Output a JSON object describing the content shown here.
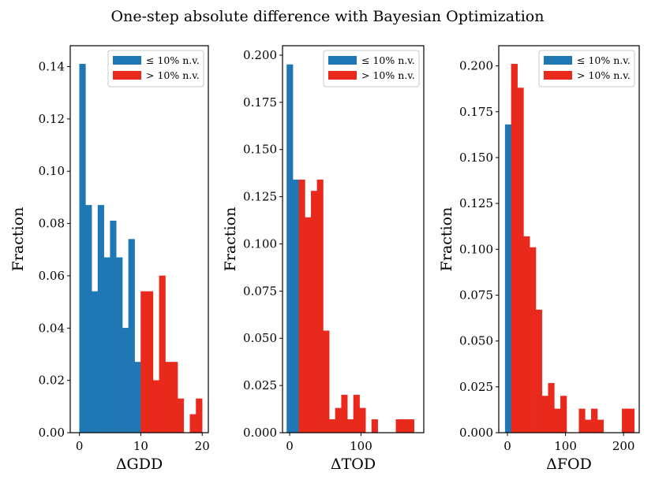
{
  "figure_title": "One-step absolute difference with Bayesian Optimization",
  "colors": {
    "below": "#1f77b4",
    "above": "#e8291c"
  },
  "chart_data": [
    {
      "type": "bar",
      "xlabel": "ΔGDD",
      "ylabel": "Fraction",
      "xlim": [
        -1.5,
        21
      ],
      "ylim": [
        0,
        0.148
      ],
      "xticks": [
        0,
        10,
        20
      ],
      "yticks": [
        "0.00",
        "0.02",
        "0.04",
        "0.06",
        "0.08",
        "0.10",
        "0.12",
        "0.14"
      ],
      "legend": {
        "position": "top-right",
        "entries": [
          "≤ 10% n.v.",
          "> 10% n.v."
        ]
      },
      "series": [
        {
          "name": "≤ 10% n.v.",
          "bin_width": 1,
          "bins": [
            [
              0,
              0.141
            ],
            [
              1,
              0.087
            ],
            [
              2,
              0.054
            ],
            [
              3,
              0.087
            ],
            [
              4,
              0.067
            ],
            [
              5,
              0.081
            ],
            [
              6,
              0.067
            ],
            [
              7,
              0.04
            ],
            [
              8,
              0.074
            ],
            [
              9,
              0.027
            ]
          ]
        },
        {
          "name": "> 10% n.v.",
          "bin_width": 1,
          "bins": [
            [
              10,
              0.054
            ],
            [
              11,
              0.054
            ],
            [
              12,
              0.02
            ],
            [
              13,
              0.06
            ],
            [
              14,
              0.027
            ],
            [
              15,
              0.027
            ],
            [
              16,
              0.013
            ],
            [
              17,
              0.0
            ],
            [
              18,
              0.007
            ],
            [
              19,
              0.013
            ]
          ]
        }
      ]
    },
    {
      "type": "bar",
      "xlabel": "ΔTOD",
      "ylabel": "Fraction",
      "xlim": [
        -10,
        188
      ],
      "ylim": [
        0,
        0.205
      ],
      "xticks": [
        0,
        100
      ],
      "yticks": [
        "0.000",
        "0.025",
        "0.050",
        "0.075",
        "0.100",
        "0.125",
        "0.150",
        "0.175",
        "0.200"
      ],
      "legend": {
        "position": "top-right",
        "entries": [
          "≤ 10% n.v.",
          "> 10% n.v."
        ]
      },
      "series": [
        {
          "name": "≤ 10% n.v.",
          "bin_width": 8.5,
          "bins": [
            [
              -4,
              0.195
            ],
            [
              4.5,
              0.134
            ]
          ]
        },
        {
          "name": "> 10% n.v.",
          "bin_width": 8.5,
          "bins": [
            [
              13,
              0.134
            ],
            [
              21.5,
              0.114
            ],
            [
              30,
              0.128
            ],
            [
              38.5,
              0.134
            ],
            [
              47,
              0.054
            ],
            [
              55.5,
              0.007
            ],
            [
              64,
              0.013
            ],
            [
              72.5,
              0.02
            ],
            [
              81,
              0.007
            ],
            [
              89.5,
              0.02
            ],
            [
              98,
              0.013
            ],
            [
              106.5,
              0.0
            ],
            [
              115,
              0.007
            ],
            [
              123.5,
              0.0
            ],
            [
              132,
              0.0
            ],
            [
              140.5,
              0.0
            ],
            [
              149,
              0.007
            ],
            [
              157.5,
              0.007
            ],
            [
              166,
              0.007
            ]
          ]
        }
      ]
    },
    {
      "type": "bar",
      "xlabel": "ΔFOD",
      "ylabel": "Fraction",
      "xlim": [
        -15,
        227
      ],
      "ylim": [
        0,
        0.211
      ],
      "xticks": [
        0,
        100,
        200
      ],
      "yticks": [
        "0.000",
        "0.025",
        "0.050",
        "0.075",
        "0.100",
        "0.125",
        "0.150",
        "0.175",
        "0.200"
      ],
      "legend": {
        "position": "top-right",
        "entries": [
          "≤ 10% n.v.",
          "> 10% n.v."
        ]
      },
      "series": [
        {
          "name": "≤ 10% n.v.",
          "bin_width": 10.6,
          "bins": [
            [
              -4,
              0.168
            ]
          ]
        },
        {
          "name": "> 10% n.v.",
          "bin_width": 10.6,
          "bins": [
            [
              6.6,
              0.201
            ],
            [
              17.2,
              0.188
            ],
            [
              27.8,
              0.107
            ],
            [
              38.4,
              0.101
            ],
            [
              49,
              0.067
            ],
            [
              59.6,
              0.02
            ],
            [
              70.2,
              0.027
            ],
            [
              80.8,
              0.013
            ],
            [
              91.4,
              0.02
            ],
            [
              102,
              0.0
            ],
            [
              112.6,
              0.0
            ],
            [
              123.2,
              0.013
            ],
            [
              133.8,
              0.007
            ],
            [
              144.4,
              0.013
            ],
            [
              155,
              0.007
            ],
            [
              165.6,
              0.0
            ],
            [
              176.2,
              0.0
            ],
            [
              186.8,
              0.0
            ],
            [
              197.4,
              0.013
            ],
            [
              208,
              0.013
            ]
          ]
        }
      ]
    }
  ]
}
